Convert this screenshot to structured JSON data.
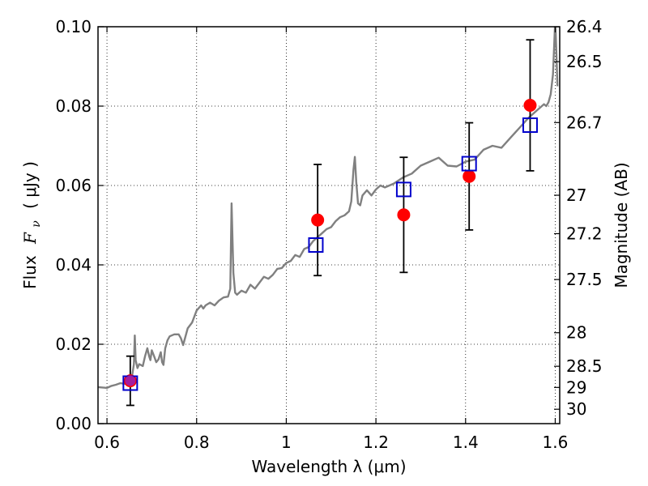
{
  "chart_data": {
    "type": "scatter",
    "xlabel": "Wavelength  λ (μm)",
    "ylabel_left": {
      "prefix": "Flux",
      "symbol": "F",
      "symbol_sub": "ν",
      "unit": "( μJy )"
    },
    "ylabel_right": "Magnitude (AB)",
    "xlim": [
      0.58,
      1.61
    ],
    "ylim": [
      0.0,
      0.1
    ],
    "grid": true,
    "x_ticks": [
      {
        "value": 0.6,
        "label": "0.6"
      },
      {
        "value": 0.8,
        "label": "0.8"
      },
      {
        "value": 1.0,
        "label": "1"
      },
      {
        "value": 1.2,
        "label": "1.2"
      },
      {
        "value": 1.4,
        "label": "1.4"
      },
      {
        "value": 1.6,
        "label": "1.6"
      }
    ],
    "y_ticks": [
      {
        "value": 0.0,
        "label": "0.00"
      },
      {
        "value": 0.02,
        "label": "0.02"
      },
      {
        "value": 0.04,
        "label": "0.04"
      },
      {
        "value": 0.06,
        "label": "0.06"
      },
      {
        "value": 0.08,
        "label": "0.08"
      },
      {
        "value": 0.1,
        "label": "0.10"
      }
    ],
    "right_ticks": [
      {
        "value": 26.4,
        "label": "26.4"
      },
      {
        "value": 26.5,
        "label": "26.5"
      },
      {
        "value": 26.7,
        "label": "26.7"
      },
      {
        "value": 27.0,
        "label": "27"
      },
      {
        "value": 27.2,
        "label": "27.2"
      },
      {
        "value": 27.5,
        "label": "27.5"
      },
      {
        "value": 28.0,
        "label": "28"
      },
      {
        "value": 28.5,
        "label": "28.5"
      },
      {
        "value": 29.0,
        "label": "29"
      },
      {
        "value": 30.0,
        "label": "30"
      }
    ],
    "spectrum": {
      "color": "#808080",
      "x": [
        0.58,
        0.6,
        0.61,
        0.62,
        0.63,
        0.64,
        0.65,
        0.655,
        0.66,
        0.662,
        0.664,
        0.668,
        0.672,
        0.68,
        0.685,
        0.69,
        0.694,
        0.697,
        0.7,
        0.705,
        0.71,
        0.715,
        0.72,
        0.723,
        0.726,
        0.73,
        0.735,
        0.74,
        0.75,
        0.76,
        0.765,
        0.77,
        0.78,
        0.79,
        0.8,
        0.81,
        0.815,
        0.82,
        0.83,
        0.84,
        0.85,
        0.86,
        0.87,
        0.875,
        0.878,
        0.882,
        0.886,
        0.89,
        0.9,
        0.91,
        0.92,
        0.93,
        0.94,
        0.95,
        0.96,
        0.97,
        0.98,
        0.99,
        1.0,
        1.01,
        1.02,
        1.03,
        1.04,
        1.05,
        1.06,
        1.07,
        1.08,
        1.09,
        1.1,
        1.11,
        1.12,
        1.13,
        1.14,
        1.145,
        1.15,
        1.153,
        1.156,
        1.16,
        1.165,
        1.17,
        1.18,
        1.19,
        1.2,
        1.21,
        1.22,
        1.24,
        1.26,
        1.28,
        1.3,
        1.32,
        1.34,
        1.36,
        1.38,
        1.4,
        1.42,
        1.44,
        1.46,
        1.48,
        1.5,
        1.52,
        1.54,
        1.56,
        1.57,
        1.575,
        1.58,
        1.585,
        1.59,
        1.595,
        1.6,
        1.605
      ],
      "y": [
        0.0092,
        0.009,
        0.0095,
        0.0098,
        0.0102,
        0.01,
        0.0108,
        0.0112,
        0.015,
        0.0222,
        0.016,
        0.014,
        0.015,
        0.0145,
        0.017,
        0.019,
        0.017,
        0.016,
        0.0185,
        0.017,
        0.0155,
        0.0162,
        0.018,
        0.0155,
        0.0148,
        0.019,
        0.021,
        0.022,
        0.0225,
        0.0225,
        0.0215,
        0.0198,
        0.024,
        0.0255,
        0.0285,
        0.0298,
        0.029,
        0.0298,
        0.0305,
        0.0298,
        0.031,
        0.0318,
        0.032,
        0.034,
        0.0555,
        0.038,
        0.033,
        0.0325,
        0.0335,
        0.033,
        0.035,
        0.034,
        0.0355,
        0.037,
        0.0365,
        0.0375,
        0.039,
        0.0392,
        0.0405,
        0.041,
        0.0425,
        0.042,
        0.044,
        0.0445,
        0.046,
        0.047,
        0.048,
        0.049,
        0.0495,
        0.051,
        0.052,
        0.0525,
        0.0535,
        0.056,
        0.064,
        0.0672,
        0.061,
        0.0555,
        0.055,
        0.0575,
        0.0588,
        0.0575,
        0.059,
        0.06,
        0.0595,
        0.0605,
        0.062,
        0.063,
        0.065,
        0.066,
        0.067,
        0.065,
        0.0648,
        0.066,
        0.0665,
        0.069,
        0.07,
        0.0695,
        0.072,
        0.0745,
        0.077,
        0.079,
        0.08,
        0.0805,
        0.08,
        0.081,
        0.083,
        0.088,
        0.102,
        0.085
      ]
    },
    "series": [
      {
        "kind": "observed",
        "color": "#ff0000",
        "points": [
          {
            "x": 0.652,
            "y": 0.0108,
            "err": 0.0062
          },
          {
            "x": 1.07,
            "y": 0.0513,
            "err": 0.014
          },
          {
            "x": 1.262,
            "y": 0.0526,
            "err": 0.0145
          },
          {
            "x": 1.408,
            "y": 0.0623,
            "err": 0.0135
          },
          {
            "x": 1.544,
            "y": 0.0802,
            "err": 0.0165
          }
        ]
      },
      {
        "kind": "model",
        "color": "#0000cc",
        "points": [
          {
            "x": 0.652,
            "y": 0.0102
          },
          {
            "x": 1.066,
            "y": 0.045
          },
          {
            "x": 1.262,
            "y": 0.059
          },
          {
            "x": 1.408,
            "y": 0.0655
          },
          {
            "x": 1.544,
            "y": 0.0752
          }
        ]
      }
    ]
  }
}
